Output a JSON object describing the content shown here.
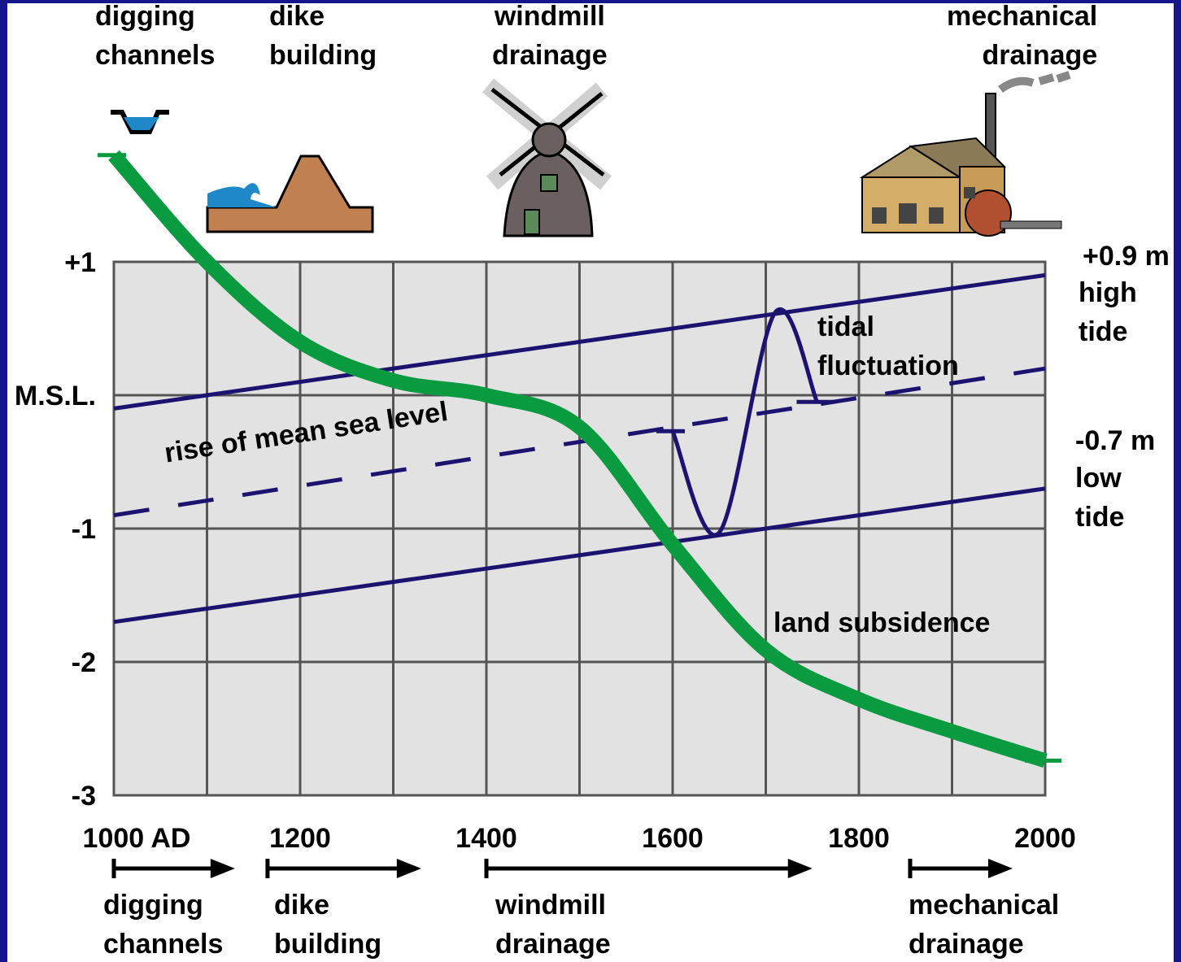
{
  "chart_data": {
    "type": "line",
    "xlim": [
      1000,
      2000
    ],
    "ylim": [
      -3,
      1
    ],
    "xticks": [
      {
        "value": 1000,
        "label": "1000 AD"
      },
      1200,
      1400,
      1600,
      1800,
      2000
    ],
    "yticks": [
      {
        "value": 1,
        "label": "+1"
      },
      {
        "value": 0,
        "label": "M.S.L."
      },
      -1,
      -2,
      -3
    ],
    "grid": true,
    "series": [
      {
        "name": "high tide",
        "end_label": "+0.9 m",
        "color": "#1c1370",
        "dashed": false,
        "x": [
          1000,
          2000
        ],
        "values": [
          -0.1,
          0.9
        ]
      },
      {
        "name": "low tide",
        "end_label": "-0.7 m",
        "color": "#1c1370",
        "dashed": false,
        "x": [
          1000,
          2000
        ],
        "values": [
          -1.7,
          -0.7
        ]
      },
      {
        "name": "rise of mean sea level",
        "color": "#1c1370",
        "dashed": true,
        "x": [
          1000,
          2000
        ],
        "values": [
          -0.9,
          0.2
        ]
      },
      {
        "name": "tidal fluctuation",
        "color": "#1c1370",
        "dashed": false,
        "x": [
          1600,
          1650,
          1710,
          1755
        ],
        "values": [
          -0.27,
          -1.03,
          0.62,
          -0.05
        ]
      },
      {
        "name": "land subsidence",
        "color": "#0a9a40",
        "dashed": false,
        "x": [
          1000,
          1100,
          1200,
          1300,
          1400,
          1500,
          1600,
          1700,
          1800,
          1900,
          2000
        ],
        "values": [
          1.8,
          1.0,
          0.4,
          0.11,
          0.0,
          -0.24,
          -1.12,
          -1.91,
          -2.28,
          -2.52,
          -2.74
        ]
      }
    ],
    "phases": [
      {
        "label": "digging channels",
        "start": 1000,
        "end": 1130
      },
      {
        "label": "dike building",
        "start": 1165,
        "end": 1330
      },
      {
        "label": "windmill drainage",
        "start": 1400,
        "end": 1750
      },
      {
        "label": "mechanical drainage",
        "start": 1855,
        "end": 1965
      }
    ]
  }
}
